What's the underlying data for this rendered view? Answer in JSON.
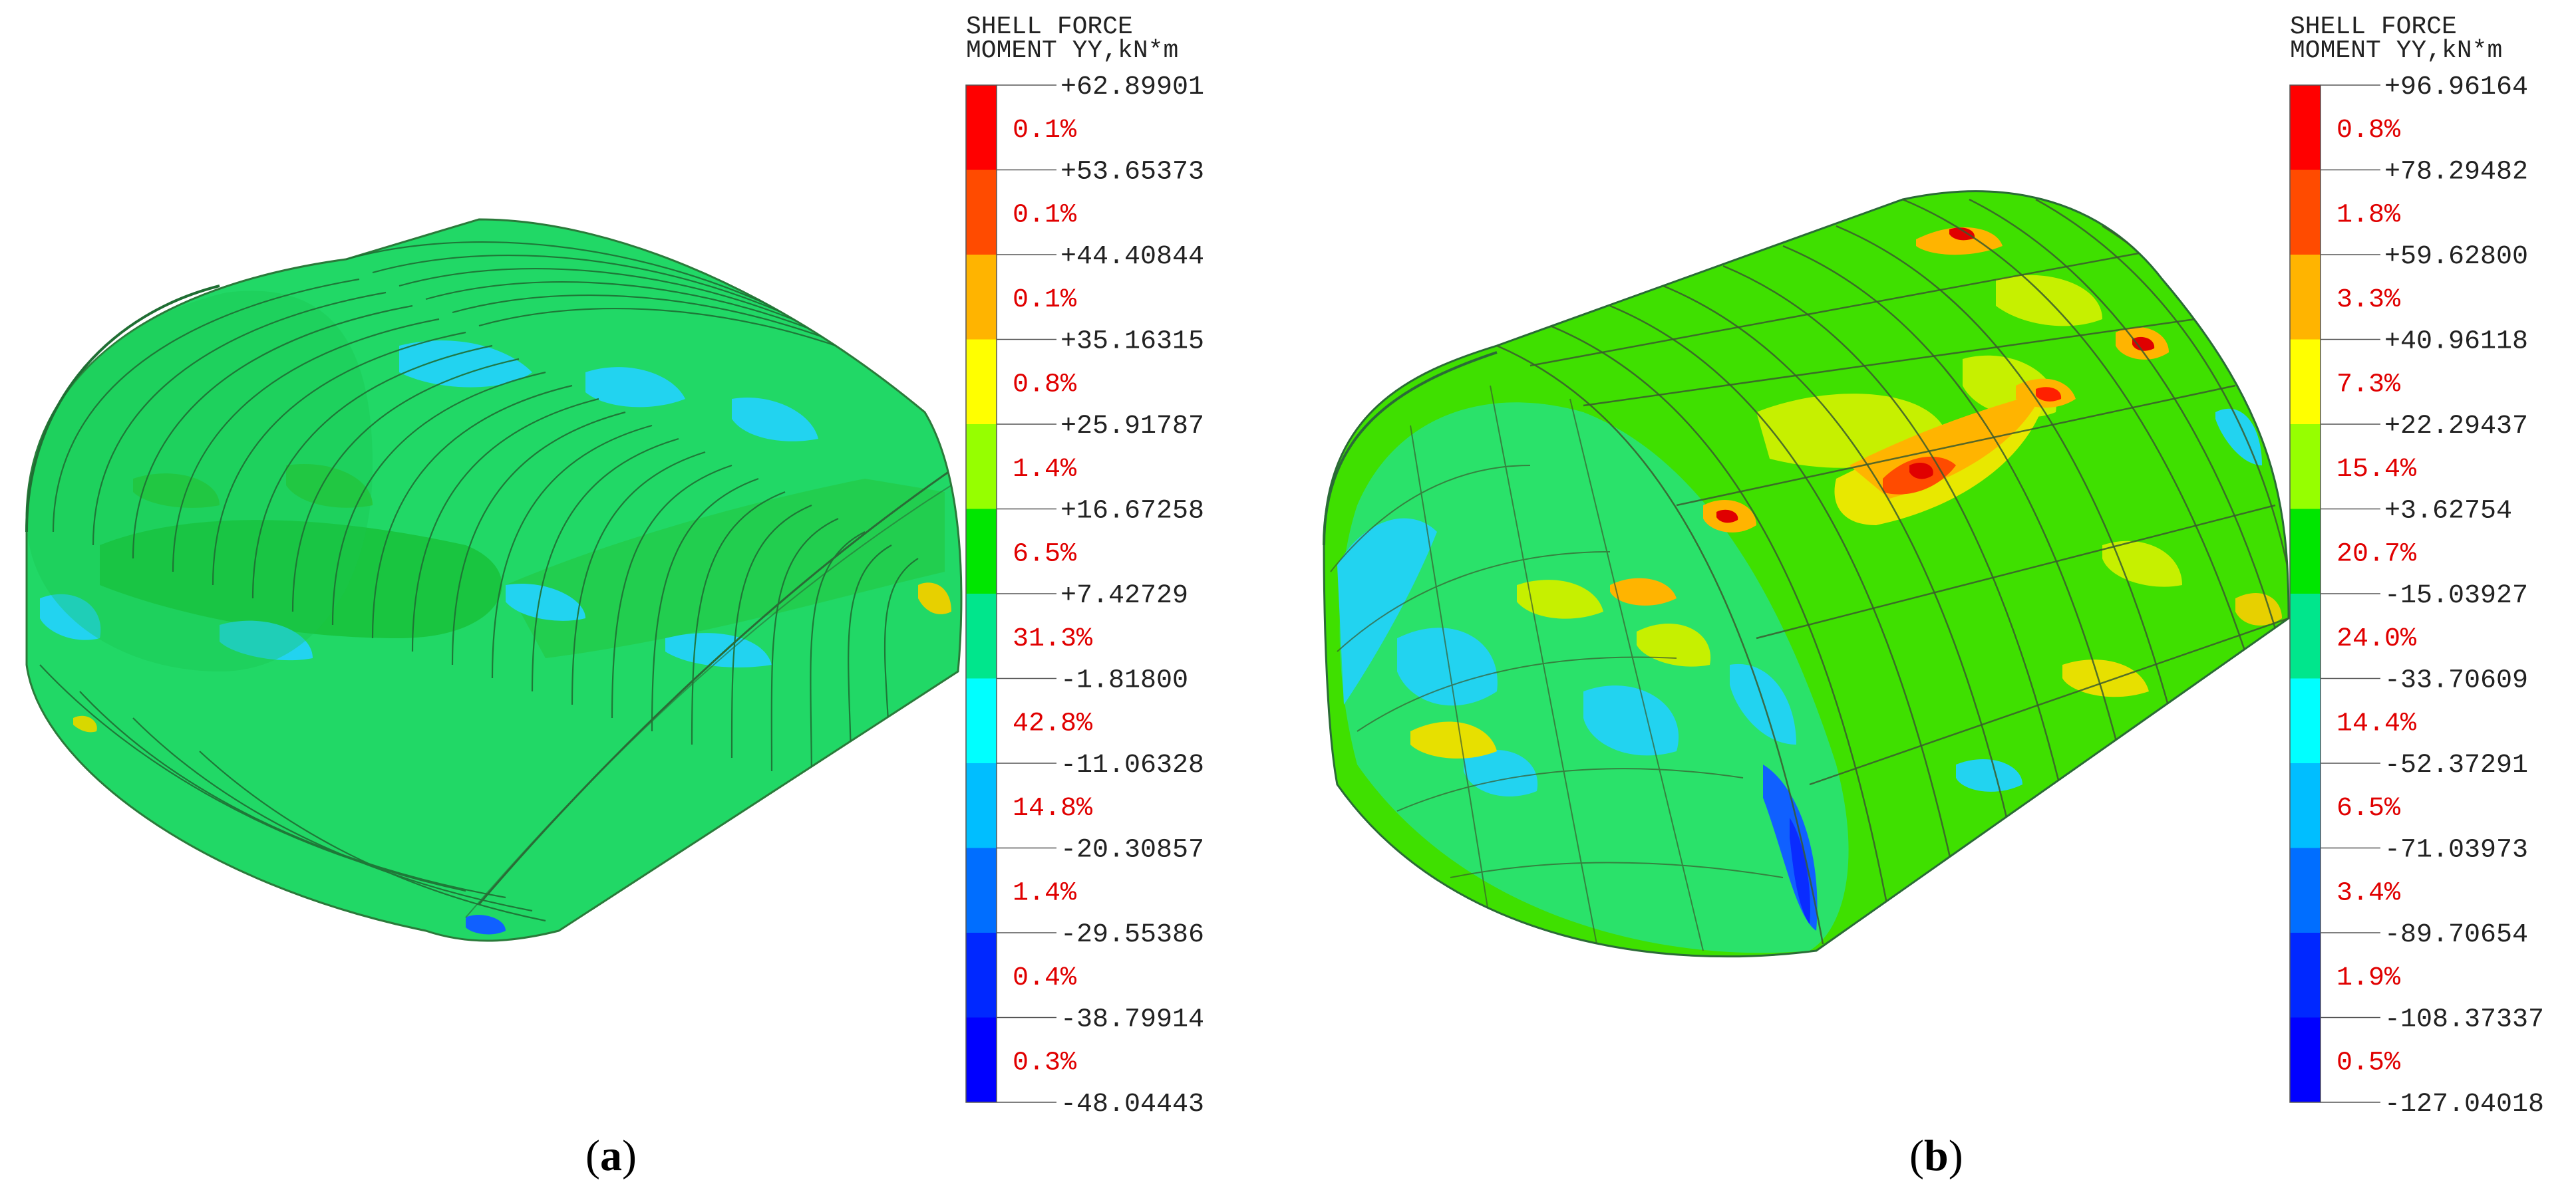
{
  "panels": [
    {
      "caption_letter": "a",
      "legend": {
        "title_line1": "SHELL FORCE",
        "title_line2": "MOMENT YY,kN*m",
        "values": [
          "+62.89901",
          "+53.65373",
          "+44.40844",
          "+35.16315",
          "+25.91787",
          "+16.67258",
          "+7.42729",
          "-1.81800",
          "-11.06328",
          "-20.30857",
          "-29.55386",
          "-38.79914",
          "-48.04443"
        ],
        "percents": [
          "0.1%",
          "0.1%",
          "0.1%",
          "0.8%",
          "1.4%",
          "6.5%",
          "31.3%",
          "42.8%",
          "14.8%",
          "1.4%",
          "0.4%",
          "0.3%"
        ]
      }
    },
    {
      "caption_letter": "b",
      "legend": {
        "title_line1": "SHELL FORCE",
        "title_line2": "MOMENT YY,kN*m",
        "values": [
          "+96.96164",
          "+78.29482",
          "+59.62800",
          "+40.96118",
          "+22.29437",
          "+3.62754",
          "-15.03927",
          "-33.70609",
          "-52.37291",
          "-71.03973",
          "-89.70654",
          "-108.37337",
          "-127.04018"
        ],
        "percents": [
          "0.8%",
          "1.8%",
          "3.3%",
          "7.3%",
          "15.4%",
          "20.7%",
          "24.0%",
          "14.4%",
          "6.5%",
          "3.4%",
          "1.9%",
          "0.5%"
        ]
      }
    }
  ],
  "colors": {
    "bands": [
      "#ff0000",
      "#ff4800",
      "#ffb400",
      "#ffff00",
      "#96ff00",
      "#00e100",
      "#00e17b",
      "#00ffff",
      "#00b4ff",
      "#0064ff",
      "#0000ff"
    ],
    "bands_12": [
      "#ff0000",
      "#ff4b00",
      "#ffb400",
      "#ffff00",
      "#96ff00",
      "#00e600",
      "#00e68c",
      "#00ffff",
      "#00beff",
      "#006eff",
      "#0028ff",
      "#0000ff"
    ],
    "percent_text": "#e00000",
    "value_text": "#222222"
  }
}
